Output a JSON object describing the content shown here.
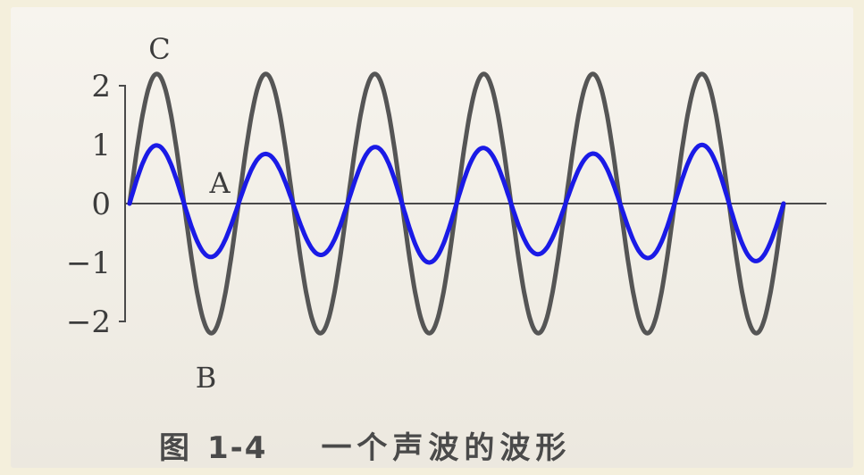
{
  "chart_data": {
    "type": "line",
    "ylim": [
      -2.3,
      2.3
    ],
    "yticks": [
      "2",
      "1",
      "0",
      "−1",
      "−2"
    ],
    "point_labels": {
      "C": "C",
      "A": "A",
      "B": "B"
    },
    "cycles": 6,
    "series": [
      {
        "amplitude": 2.2,
        "phase": "sine",
        "color": "#555555"
      },
      {
        "amplitude": 1.0,
        "phase": "sine",
        "color": "#1a1ae6"
      }
    ]
  },
  "caption": {
    "figure": "图",
    "number": "1-4",
    "text": "一个声波的波形"
  }
}
